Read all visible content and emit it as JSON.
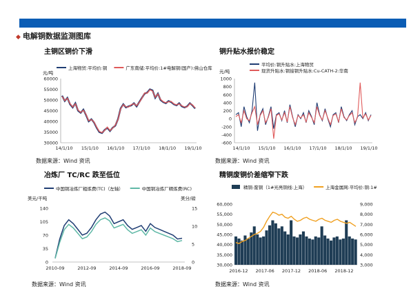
{
  "header": {
    "bar_color": "#0b5db5",
    "section_title": "电解铜数据监测图库"
  },
  "panels": [
    {
      "title": "主铜区铜价下滑",
      "source": "数据来源：Wind 资讯"
    },
    {
      "title": "铜升贴水报价稳定",
      "source": "数据来源：Wind 资讯"
    },
    {
      "title": "冶炼厂 TC/RC 跌至低位",
      "source": "数据来源：Wind 资讯"
    },
    {
      "title": "精铜废铜价差缩窄下跌",
      "source": "数据来源：Wind 资讯"
    }
  ],
  "chart_data": [
    {
      "type": "line",
      "unit": "元/吨",
      "x_ticks": [
        "14/1/10",
        "15/1/10",
        "16/1/10",
        "17/1/10",
        "18/1/10",
        "19/1/10"
      ],
      "y_ticks": [
        30000,
        35000,
        40000,
        45000,
        50000,
        55000,
        60000
      ],
      "ylim": [
        30000,
        60000
      ],
      "legend_position": "top",
      "series": [
        {
          "name": "上海物贸:平均价:铜",
          "color": "#1f3d73",
          "values": [
            52000,
            49500,
            51000,
            48000,
            46500,
            48500,
            45000,
            44000,
            45500,
            43000,
            40000,
            41000,
            39500,
            37000,
            35000,
            34500,
            36000,
            37000,
            35500,
            37000,
            38000,
            41000,
            46000,
            48000,
            46500,
            47000,
            47500,
            48500,
            47000,
            49000,
            51000,
            53000,
            53500,
            55000,
            54500,
            51000,
            53000,
            50000,
            49000,
            48500,
            49500,
            49000,
            48000,
            47500,
            48500,
            47000,
            46500,
            47000,
            48500,
            47500,
            46000
          ]
        },
        {
          "name": "广东南储:平均价:1#电解铜(国产):佛山仓库",
          "color": "#e05a5a",
          "values": [
            51700,
            49700,
            50800,
            48300,
            46700,
            48200,
            45300,
            44200,
            45200,
            43300,
            40300,
            40800,
            39700,
            37300,
            35300,
            34700,
            35800,
            37300,
            35700,
            36800,
            38300,
            40800,
            45800,
            47800,
            46800,
            46700,
            47800,
            48300,
            47300,
            48800,
            50800,
            53300,
            53200,
            54800,
            54200,
            51300,
            52800,
            50300,
            49200,
            48700,
            49200,
            49300,
            48200,
            47700,
            48200,
            47300,
            46700,
            46800,
            48300,
            47700,
            46300
          ]
        }
      ]
    },
    {
      "type": "line",
      "unit": "元/吨",
      "x_ticks": [
        "14/1/10",
        "15/1/10",
        "16/1/10",
        "17/1/10",
        "18/1/10",
        "19/1/10"
      ],
      "y_ticks": [
        -600,
        -400,
        -200,
        0,
        200,
        400,
        600,
        800,
        1000
      ],
      "ylim": [
        -600,
        1000
      ],
      "legend_position": "top",
      "series": [
        {
          "name": "平均价:铜升贴水:上海物贸",
          "color": "#1f3d73",
          "values": [
            100,
            150,
            -200,
            300,
            50,
            -100,
            200,
            900,
            -300,
            100,
            250,
            -150,
            50,
            300,
            -250,
            100,
            150,
            -50,
            200,
            -100,
            350,
            50,
            -200,
            100,
            0,
            150,
            -100,
            200,
            50,
            -150,
            400,
            100,
            -50,
            250,
            0,
            -200,
            100,
            150,
            -100,
            300,
            50,
            -50,
            100,
            200,
            -150,
            50,
            100,
            0,
            150,
            -50,
            100
          ]
        },
        {
          "name": "现货升贴水:铜接铜升贴水:Cu-CATH-2:华南",
          "color": "#e05a5a",
          "values": [
            50,
            100,
            -100,
            200,
            0,
            -50,
            150,
            300,
            -150,
            80,
            200,
            -100,
            30,
            250,
            -500,
            80,
            120,
            -30,
            150,
            -80,
            300,
            30,
            -150,
            80,
            20,
            100,
            -80,
            150,
            30,
            -100,
            300,
            80,
            -30,
            200,
            20,
            -150,
            80,
            120,
            -80,
            250,
            30,
            -30,
            80,
            150,
            -100,
            30,
            900,
            20,
            120,
            -30,
            80
          ]
        }
      ]
    },
    {
      "type": "line",
      "unit_left": "美元/干吨",
      "unit_right": "美分/磅",
      "x_ticks": [
        "2010-09",
        "2012-09",
        "2014-09",
        "2016-09",
        "2018-09"
      ],
      "y_ticks_left": [
        0,
        35,
        70,
        105,
        140
      ],
      "ylim_left": [
        0,
        140
      ],
      "y_ticks_right": [
        0,
        5,
        10,
        15
      ],
      "ylim_right": [
        0,
        15
      ],
      "legend_position": "top",
      "series": [
        {
          "name": "中国铜冶炼厂粗炼费(TC)（左轴）",
          "color": "#1f3d73",
          "values": [
            10,
            60,
            95,
            110,
            100,
            85,
            70,
            75,
            90,
            110,
            125,
            130,
            120,
            100,
            105,
            110,
            95,
            85,
            90,
            95,
            80,
            100,
            90,
            85,
            80,
            75,
            70,
            60,
            62
          ]
        },
        {
          "name": "中国铜冶炼厂精炼费(RC)",
          "color": "#5fb8a6",
          "values": [
            1,
            5.5,
            9,
            10.5,
            9.5,
            8,
            6.5,
            7,
            8.5,
            10.5,
            11.8,
            12.3,
            11.5,
            9.5,
            10,
            10.5,
            9,
            8,
            8.5,
            9,
            7.5,
            9.5,
            8.5,
            8,
            7.5,
            7,
            6.5,
            5.7,
            6
          ]
        }
      ]
    },
    {
      "type": "bar+line",
      "x_ticks": [
        "2016-12",
        "2017-06",
        "2017-12",
        "2018-06",
        "2018-12"
      ],
      "y_ticks_left": [
        30000,
        35000,
        40000,
        45000,
        50000,
        55000,
        60000
      ],
      "ylim_left": [
        30000,
        60000
      ],
      "y_ticks_right": [
        3000,
        4000,
        5000,
        6000,
        7000,
        8000,
        9000
      ],
      "ylim_right": [
        3000,
        9000
      ],
      "legend_position": "top",
      "series": [
        {
          "name": "精铜-废铜（1#光亮铜线:上海）",
          "kind": "bar",
          "color": "#1f3d55",
          "values": [
            44000,
            43000,
            42000,
            44500,
            43000,
            46000,
            49000,
            45000,
            43500,
            44000,
            47000,
            49500,
            52000,
            50500,
            48000,
            49000,
            46500,
            45000,
            52000,
            44000,
            43500,
            45000,
            46500,
            44000,
            43000,
            42500,
            44000,
            43500,
            49000,
            44500,
            43000,
            42000,
            43500,
            44000,
            42500,
            43000,
            52000,
            44000,
            43000,
            42500
          ]
        },
        {
          "name": "上海金属网:平均价:铜:1#",
          "kind": "line",
          "color": "#f0a020",
          "values": [
            5200,
            5100,
            5300,
            5400,
            5600,
            5800,
            6000,
            6100,
            6300,
            6700,
            7300,
            7800,
            8200,
            8100,
            7900,
            8000,
            7700,
            7600,
            7800,
            7500,
            7300,
            7400,
            7600,
            7700,
            7500,
            7400,
            7300,
            7500,
            7600,
            7400,
            7300,
            7200,
            7400,
            7500,
            7300,
            7200,
            7100,
            7200,
            7000,
            6800
          ]
        }
      ]
    }
  ]
}
